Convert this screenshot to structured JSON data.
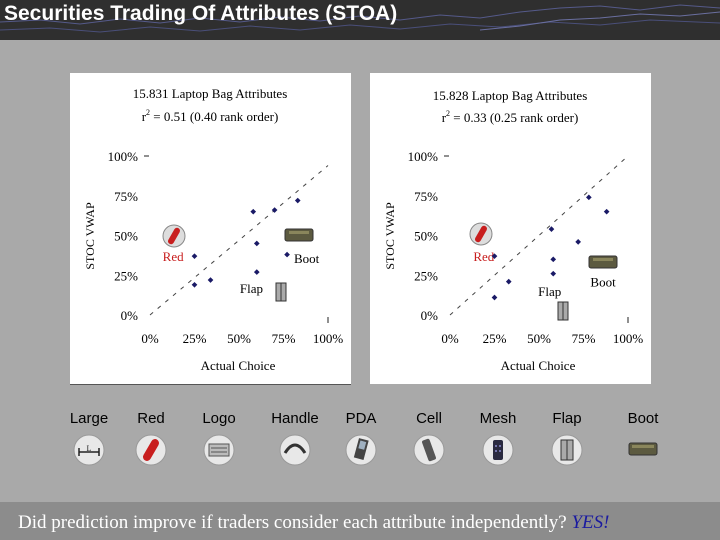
{
  "slide": {
    "title": "Securities Trading Of Attributes (STOA)",
    "question": "Did prediction improve if traders consider each attribute independently?",
    "answer": "YES!"
  },
  "attributes": [
    {
      "label": "Large",
      "icon": "large-bag-icon"
    },
    {
      "label": "Red",
      "icon": "red-bag-icon"
    },
    {
      "label": "Logo",
      "icon": "logo-bag-icon"
    },
    {
      "label": "Handle",
      "icon": "handle-icon"
    },
    {
      "label": "PDA",
      "icon": "pda-icon"
    },
    {
      "label": "Cell",
      "icon": "cell-phone-icon"
    },
    {
      "label": "Mesh",
      "icon": "mesh-pocket-icon"
    },
    {
      "label": "Flap",
      "icon": "flap-icon"
    },
    {
      "label": "Boot",
      "icon": "boot-icon"
    }
  ],
  "chart_data": [
    {
      "type": "scatter",
      "title": "15.831 Laptop Bag Attributes",
      "subtitle": "r² = 0.51 (0.40 rank order)",
      "r2_prefix": "r",
      "r2_sup": "2",
      "r2_rest": " = 0.51 (0.40 rank order)",
      "xlabel": "Actual Choice",
      "ylabel": "STOC VWAP",
      "xlim": [
        0,
        100
      ],
      "ylim": [
        0,
        100
      ],
      "x_ticks": [
        "0%",
        "25%",
        "50%",
        "75%",
        "100%"
      ],
      "y_ticks": [
        "0%",
        "25%",
        "50%",
        "75%",
        "100%"
      ],
      "points": [
        {
          "x": 25,
          "y": 37
        },
        {
          "x": 25,
          "y": 19
        },
        {
          "x": 34,
          "y": 22
        },
        {
          "x": 58,
          "y": 65
        },
        {
          "x": 60,
          "y": 45
        },
        {
          "x": 60,
          "y": 27
        },
        {
          "x": 70,
          "y": 66
        },
        {
          "x": 77,
          "y": 38
        },
        {
          "x": 83,
          "y": 72
        }
      ],
      "annotations": [
        {
          "text": "Red",
          "x": 13,
          "y": 37
        },
        {
          "text": "Boot",
          "x": 88,
          "y": 36
        },
        {
          "text": "Flap",
          "x": 57,
          "y": 17
        }
      ],
      "trend": {
        "x0": 0,
        "y0": 0,
        "x1": 100,
        "y1": 94
      }
    },
    {
      "type": "scatter",
      "title": "15.828 Laptop Bag Attributes",
      "subtitle": "r² = 0.33 (0.25 rank order)",
      "r2_prefix": "r",
      "r2_sup": "2",
      "r2_rest": " = 0.33 (0.25 rank order)",
      "xlabel": "Actual Choice",
      "ylabel": "STOC VWAP",
      "xlim": [
        0,
        100
      ],
      "ylim": [
        0,
        100
      ],
      "x_ticks": [
        "0%",
        "25%",
        "50%",
        "75%",
        "100%"
      ],
      "y_ticks": [
        "0%",
        "25%",
        "50%",
        "75%",
        "100%"
      ],
      "points": [
        {
          "x": 25,
          "y": 37
        },
        {
          "x": 25,
          "y": 11
        },
        {
          "x": 33,
          "y": 21
        },
        {
          "x": 57,
          "y": 54
        },
        {
          "x": 58,
          "y": 35
        },
        {
          "x": 58,
          "y": 26
        },
        {
          "x": 72,
          "y": 46
        },
        {
          "x": 78,
          "y": 74
        },
        {
          "x": 88,
          "y": 65
        }
      ],
      "annotations": [
        {
          "text": "Red",
          "x": 19,
          "y": 37
        },
        {
          "text": "Boot",
          "x": 86,
          "y": 21
        },
        {
          "text": "Flap",
          "x": 56,
          "y": 15
        }
      ],
      "trend": {
        "x0": 0,
        "y0": 0,
        "x1": 100,
        "y1": 100
      }
    }
  ]
}
